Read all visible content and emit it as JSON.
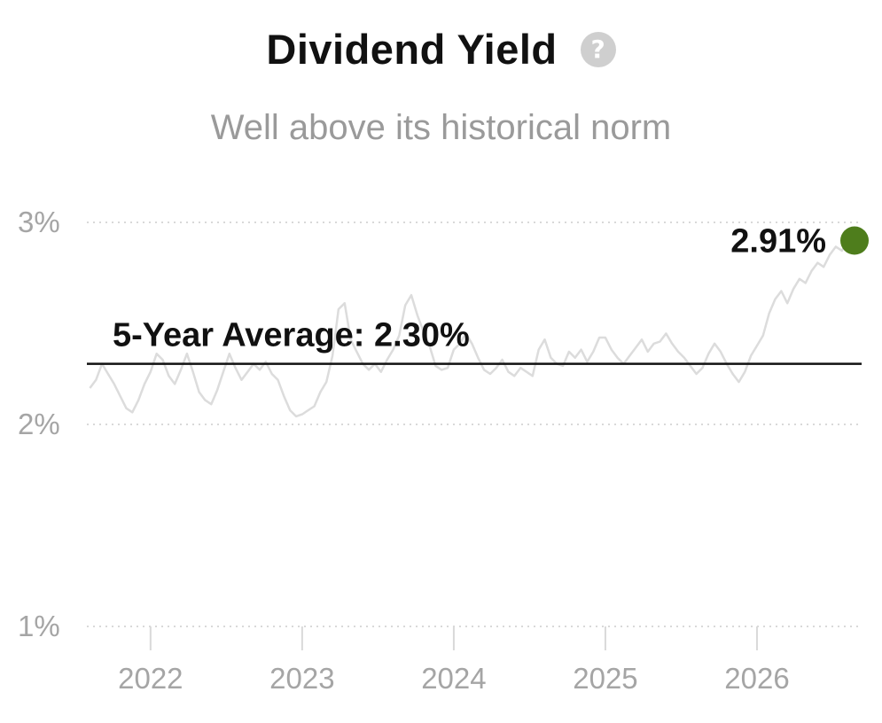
{
  "header": {
    "title": "Dividend Yield",
    "subtitle": "Well above its historical norm",
    "help_icon": "question-circle-icon",
    "help_glyph": "?"
  },
  "colors": {
    "series_line": "#dcdcdc",
    "grid": "#d9d9d9",
    "average_line": "#111111",
    "current_point": "#4e7d1c",
    "tick_text": "#a5a5a5"
  },
  "chart_data": {
    "type": "line",
    "title": "Dividend Yield",
    "subtitle": "Well above its historical norm",
    "xlabel": "",
    "ylabel": "",
    "x_range": [
      2021.58,
      2026.69
    ],
    "ylim": [
      1.0,
      3.0
    ],
    "yticks": [
      {
        "value": 1.0,
        "label": "1%"
      },
      {
        "value": 2.0,
        "label": "2%"
      },
      {
        "value": 3.0,
        "label": "3%"
      }
    ],
    "xticks": [
      {
        "value": 2022,
        "label": "2022"
      },
      {
        "value": 2023,
        "label": "2023"
      },
      {
        "value": 2024,
        "label": "2024"
      },
      {
        "value": 2025,
        "label": "2025"
      },
      {
        "value": 2026,
        "label": "2026"
      }
    ],
    "grid": "horizontal dotted",
    "series": [
      {
        "values": [
          [
            2021.6,
            2.18
          ],
          [
            2021.64,
            2.22
          ],
          [
            2021.68,
            2.3
          ],
          [
            2021.72,
            2.25
          ],
          [
            2021.76,
            2.2
          ],
          [
            2021.8,
            2.14
          ],
          [
            2021.84,
            2.08
          ],
          [
            2021.88,
            2.06
          ],
          [
            2021.92,
            2.12
          ],
          [
            2021.96,
            2.2
          ],
          [
            2022.0,
            2.26
          ],
          [
            2022.04,
            2.35
          ],
          [
            2022.08,
            2.32
          ],
          [
            2022.12,
            2.24
          ],
          [
            2022.16,
            2.2
          ],
          [
            2022.2,
            2.27
          ],
          [
            2022.24,
            2.35
          ],
          [
            2022.28,
            2.26
          ],
          [
            2022.32,
            2.16
          ],
          [
            2022.36,
            2.12
          ],
          [
            2022.4,
            2.1
          ],
          [
            2022.44,
            2.17
          ],
          [
            2022.48,
            2.26
          ],
          [
            2022.52,
            2.35
          ],
          [
            2022.56,
            2.28
          ],
          [
            2022.6,
            2.22
          ],
          [
            2022.64,
            2.26
          ],
          [
            2022.68,
            2.3
          ],
          [
            2022.72,
            2.27
          ],
          [
            2022.76,
            2.31
          ],
          [
            2022.8,
            2.25
          ],
          [
            2022.84,
            2.22
          ],
          [
            2022.88,
            2.14
          ],
          [
            2022.92,
            2.07
          ],
          [
            2022.96,
            2.04
          ],
          [
            2023.0,
            2.05
          ],
          [
            2023.04,
            2.07
          ],
          [
            2023.08,
            2.09
          ],
          [
            2023.12,
            2.16
          ],
          [
            2023.16,
            2.21
          ],
          [
            2023.2,
            2.34
          ],
          [
            2023.24,
            2.57
          ],
          [
            2023.28,
            2.6
          ],
          [
            2023.32,
            2.42
          ],
          [
            2023.36,
            2.36
          ],
          [
            2023.4,
            2.3
          ],
          [
            2023.44,
            2.27
          ],
          [
            2023.48,
            2.3
          ],
          [
            2023.52,
            2.26
          ],
          [
            2023.56,
            2.32
          ],
          [
            2023.6,
            2.37
          ],
          [
            2023.64,
            2.44
          ],
          [
            2023.68,
            2.59
          ],
          [
            2023.72,
            2.64
          ],
          [
            2023.76,
            2.54
          ],
          [
            2023.8,
            2.46
          ],
          [
            2023.84,
            2.39
          ],
          [
            2023.88,
            2.29
          ],
          [
            2023.92,
            2.27
          ],
          [
            2023.96,
            2.28
          ],
          [
            2024.0,
            2.37
          ],
          [
            2024.04,
            2.4
          ],
          [
            2024.08,
            2.45
          ],
          [
            2024.12,
            2.4
          ],
          [
            2024.16,
            2.33
          ],
          [
            2024.2,
            2.27
          ],
          [
            2024.24,
            2.25
          ],
          [
            2024.28,
            2.28
          ],
          [
            2024.32,
            2.32
          ],
          [
            2024.36,
            2.26
          ],
          [
            2024.4,
            2.24
          ],
          [
            2024.44,
            2.28
          ],
          [
            2024.48,
            2.26
          ],
          [
            2024.52,
            2.24
          ],
          [
            2024.56,
            2.37
          ],
          [
            2024.6,
            2.42
          ],
          [
            2024.64,
            2.33
          ],
          [
            2024.68,
            2.3
          ],
          [
            2024.72,
            2.29
          ],
          [
            2024.76,
            2.36
          ],
          [
            2024.8,
            2.33
          ],
          [
            2024.84,
            2.37
          ],
          [
            2024.88,
            2.31
          ],
          [
            2024.92,
            2.36
          ],
          [
            2024.96,
            2.43
          ],
          [
            2025.0,
            2.43
          ],
          [
            2025.04,
            2.37
          ],
          [
            2025.08,
            2.33
          ],
          [
            2025.12,
            2.3
          ],
          [
            2025.16,
            2.34
          ],
          [
            2025.2,
            2.38
          ],
          [
            2025.24,
            2.42
          ],
          [
            2025.28,
            2.36
          ],
          [
            2025.32,
            2.4
          ],
          [
            2025.36,
            2.41
          ],
          [
            2025.4,
            2.45
          ],
          [
            2025.44,
            2.4
          ],
          [
            2025.48,
            2.36
          ],
          [
            2025.52,
            2.33
          ],
          [
            2025.56,
            2.29
          ],
          [
            2025.6,
            2.25
          ],
          [
            2025.64,
            2.28
          ],
          [
            2025.68,
            2.35
          ],
          [
            2025.72,
            2.4
          ],
          [
            2025.76,
            2.36
          ],
          [
            2025.8,
            2.3
          ],
          [
            2025.84,
            2.25
          ],
          [
            2025.88,
            2.21
          ],
          [
            2025.92,
            2.26
          ],
          [
            2025.96,
            2.34
          ],
          [
            2026.0,
            2.39
          ],
          [
            2026.04,
            2.44
          ],
          [
            2026.08,
            2.55
          ],
          [
            2026.12,
            2.62
          ],
          [
            2026.16,
            2.66
          ],
          [
            2026.2,
            2.6
          ],
          [
            2026.24,
            2.67
          ],
          [
            2026.28,
            2.72
          ],
          [
            2026.32,
            2.7
          ],
          [
            2026.36,
            2.76
          ],
          [
            2026.4,
            2.8
          ],
          [
            2026.44,
            2.78
          ],
          [
            2026.48,
            2.84
          ],
          [
            2026.52,
            2.88
          ],
          [
            2026.56,
            2.86
          ],
          [
            2026.6,
            2.91
          ]
        ]
      }
    ],
    "reference_lines": [
      {
        "value": 2.3,
        "label": "5-Year Average: 2.30%"
      }
    ],
    "annotations": [
      {
        "x": 2026.69,
        "y": 2.91,
        "label": "2.91%"
      }
    ]
  }
}
